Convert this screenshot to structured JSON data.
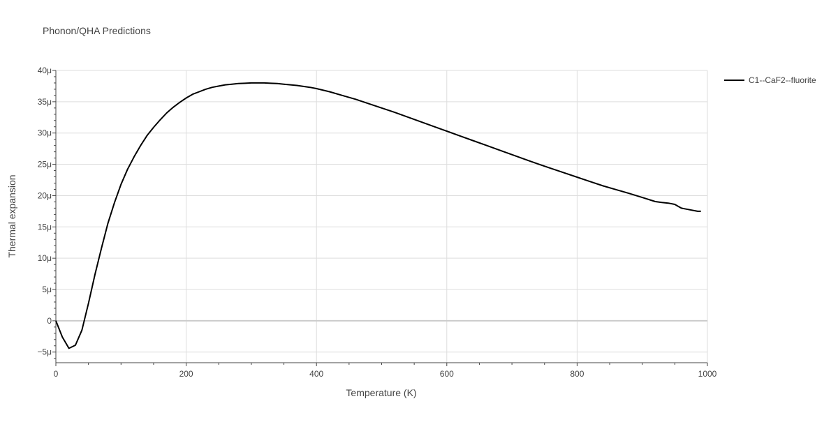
{
  "chart_data": {
    "type": "line",
    "title": "Phonon/QHA Predictions",
    "xlabel": "Temperature (K)",
    "ylabel": "Thermal expansion",
    "xlim": [
      0,
      1000
    ],
    "ylim": [
      -6.7,
      40
    ],
    "grid": true,
    "legend_position": "top-right",
    "x_ticks": [
      {
        "value": 0,
        "label": "0"
      },
      {
        "value": 200,
        "label": "200"
      },
      {
        "value": 400,
        "label": "400"
      },
      {
        "value": 600,
        "label": "600"
      },
      {
        "value": 800,
        "label": "800"
      },
      {
        "value": 1000,
        "label": "1000"
      }
    ],
    "y_ticks": [
      {
        "value": -5,
        "label": "−5μ"
      },
      {
        "value": 0,
        "label": "0"
      },
      {
        "value": 5,
        "label": "5μ"
      },
      {
        "value": 10,
        "label": "10μ"
      },
      {
        "value": 15,
        "label": "15μ"
      },
      {
        "value": 20,
        "label": "20μ"
      },
      {
        "value": 25,
        "label": "25μ"
      },
      {
        "value": 30,
        "label": "30μ"
      },
      {
        "value": 35,
        "label": "35μ"
      },
      {
        "value": 40,
        "label": "40μ"
      }
    ],
    "series": [
      {
        "name": "C1--CaF2--fluorite",
        "color": "#000000",
        "x": [
          0,
          10,
          20,
          30,
          40,
          50,
          60,
          70,
          80,
          90,
          100,
          110,
          120,
          130,
          140,
          150,
          160,
          170,
          180,
          190,
          200,
          210,
          220,
          230,
          240,
          250,
          260,
          270,
          280,
          290,
          300,
          310,
          320,
          330,
          340,
          350,
          360,
          370,
          380,
          390,
          400,
          420,
          440,
          460,
          480,
          500,
          520,
          540,
          560,
          580,
          600,
          620,
          640,
          660,
          680,
          700,
          720,
          740,
          760,
          780,
          800,
          820,
          840,
          860,
          880,
          900,
          920,
          930,
          940,
          950,
          955,
          960,
          965,
          970,
          980,
          985,
          990
        ],
        "y": [
          0,
          -2.6,
          -4.4,
          -3.9,
          -1.5,
          2.8,
          7.4,
          11.6,
          15.6,
          18.9,
          21.8,
          24.2,
          26.2,
          28.0,
          29.6,
          30.9,
          32.1,
          33.2,
          34.1,
          34.9,
          35.6,
          36.2,
          36.6,
          37.0,
          37.3,
          37.5,
          37.7,
          37.8,
          37.9,
          37.95,
          38.0,
          38.0,
          38.0,
          37.95,
          37.9,
          37.8,
          37.7,
          37.6,
          37.45,
          37.3,
          37.1,
          36.6,
          36.0,
          35.4,
          34.7,
          34.0,
          33.3,
          32.55,
          31.8,
          31.05,
          30.3,
          29.55,
          28.8,
          28.05,
          27.3,
          26.55,
          25.8,
          25.05,
          24.35,
          23.65,
          22.95,
          22.25,
          21.55,
          20.95,
          20.35,
          19.7,
          19.05,
          18.9,
          18.8,
          18.6,
          18.3,
          18.0,
          17.9,
          17.8,
          17.6,
          17.5,
          17.5
        ]
      }
    ]
  }
}
